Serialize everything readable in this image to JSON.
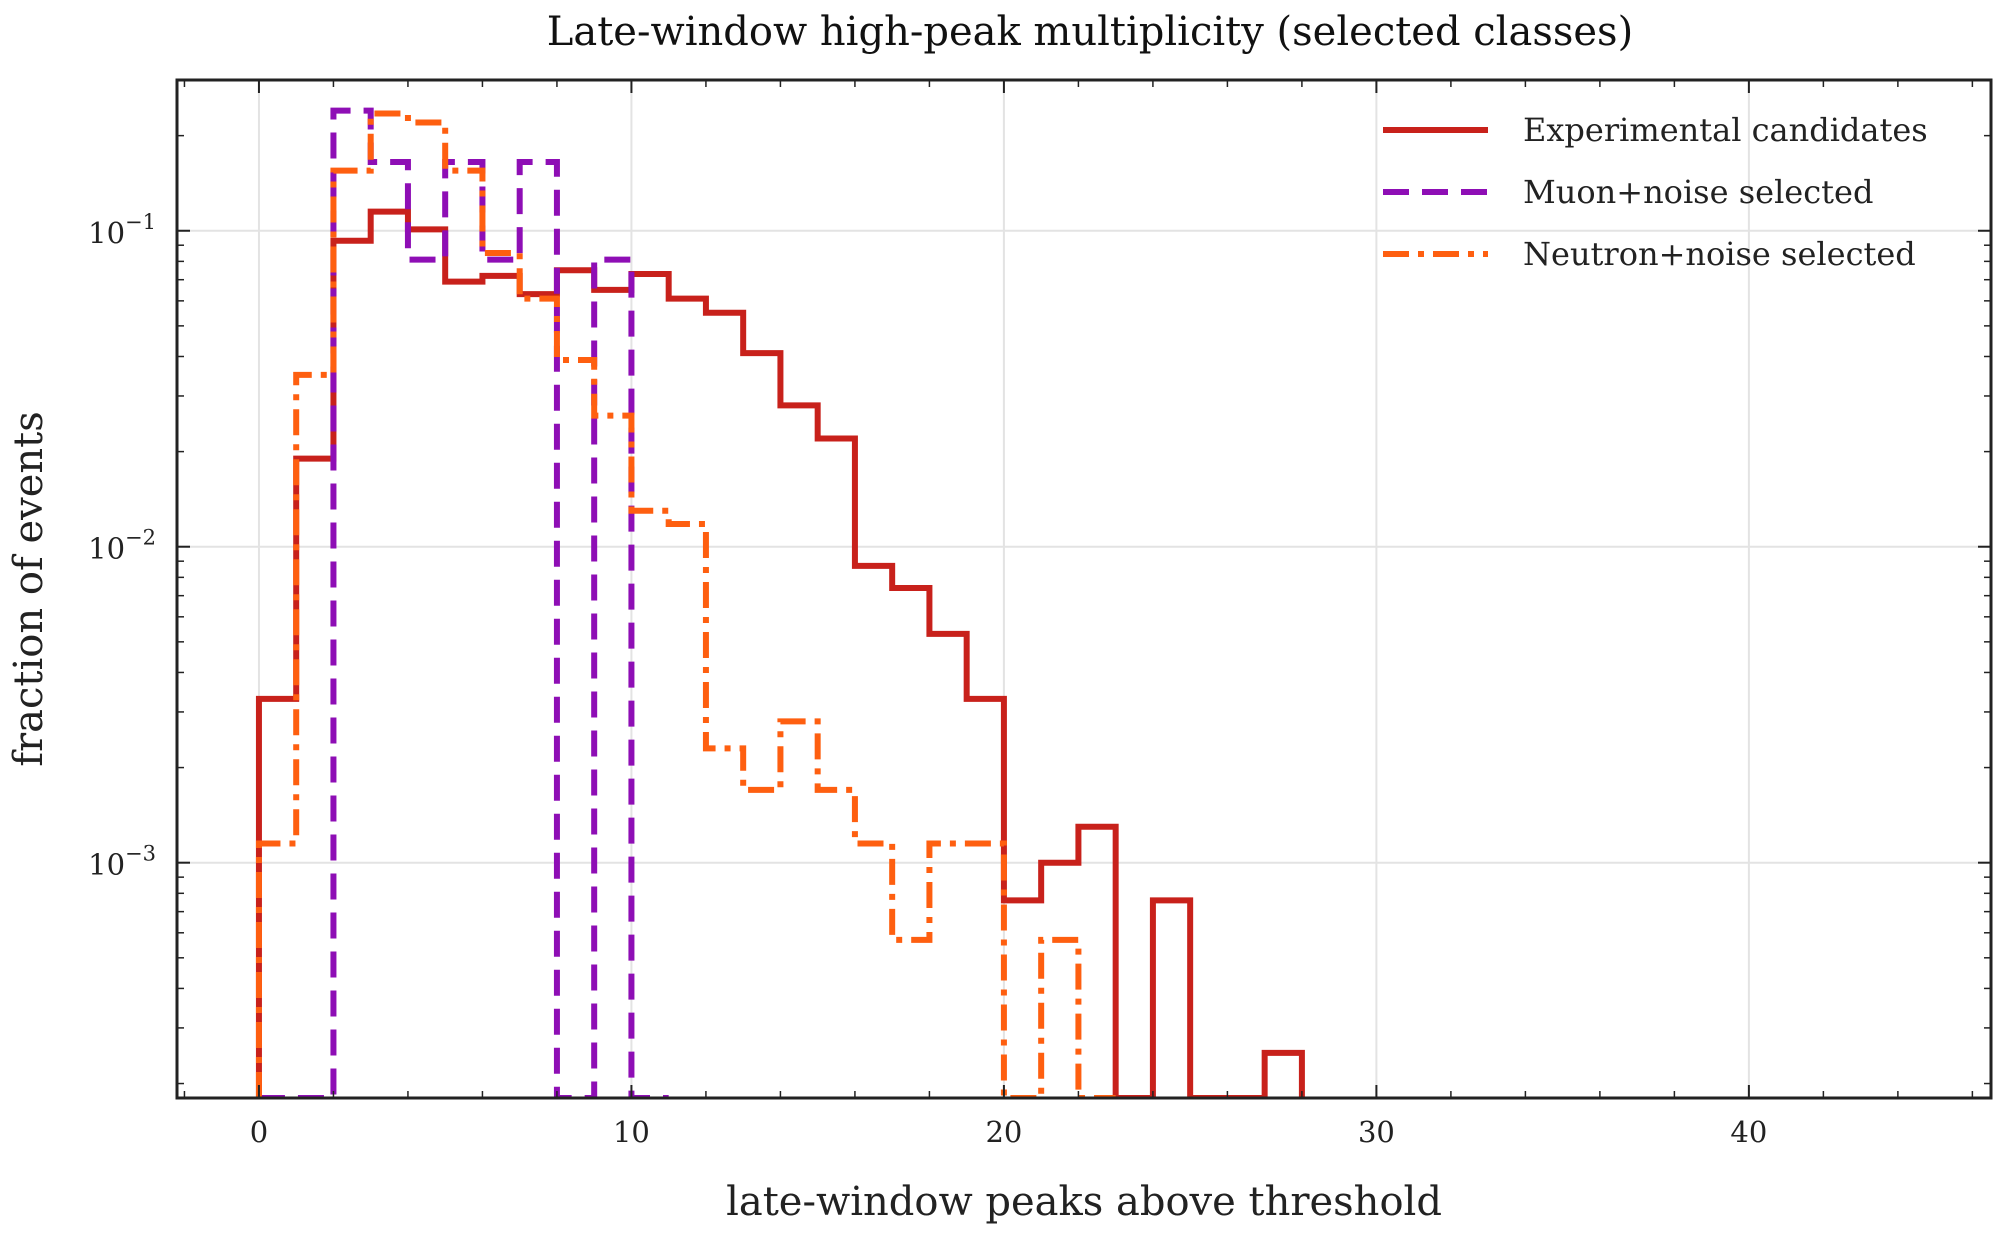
{
  "chart_data": {
    "type": "line",
    "title": "Late-window high-peak multiplicity (selected classes)",
    "xlabel": "late-window peaks above threshold",
    "ylabel": "fraction of events",
    "xlim": [
      -2.2,
      46.5
    ],
    "ylim": [
      0.00018,
      0.3
    ],
    "yscale": "log",
    "grid": true,
    "legend_position": "top-right",
    "x_ticks": [
      0,
      10,
      20,
      30,
      40
    ],
    "y_ticks": [
      {
        "value": 0.1,
        "base": "10",
        "exp": "−1"
      },
      {
        "value": 0.01,
        "base": "10",
        "exp": "−2"
      },
      {
        "value": 0.001,
        "base": "10",
        "exp": "−3"
      }
    ],
    "series": [
      {
        "name": "Experimental candidates",
        "color": "#c8211b",
        "dash": "solid",
        "values": [
          0.0033,
          0.019,
          0.093,
          0.115,
          0.101,
          0.069,
          0.072,
          0.063,
          0.075,
          0.065,
          0.073,
          0.061,
          0.055,
          0.041,
          0.028,
          0.022,
          0.0087,
          0.0074,
          0.0053,
          0.0033,
          0.00076,
          0.001,
          0.0013,
          0,
          0.00076,
          0,
          0,
          0.00025
        ]
      },
      {
        "name": "Muon+noise selected",
        "color": "#8e0eb5",
        "dash": "dashed",
        "values": [
          0,
          0,
          0.24,
          0.165,
          0.081,
          0.165,
          0.081,
          0.165,
          0,
          0.081,
          0
        ]
      },
      {
        "name": "Neutron+noise selected",
        "color": "#fe5f10",
        "dash": "dashdot",
        "values": [
          0.00115,
          0.035,
          0.155,
          0.235,
          0.22,
          0.155,
          0.085,
          0.061,
          0.039,
          0.026,
          0.013,
          0.0118,
          0.0023,
          0.0017,
          0.0028,
          0.0017,
          0.00115,
          0.00057,
          0.00115,
          0.00115,
          0,
          0.00057,
          0
        ]
      }
    ]
  }
}
